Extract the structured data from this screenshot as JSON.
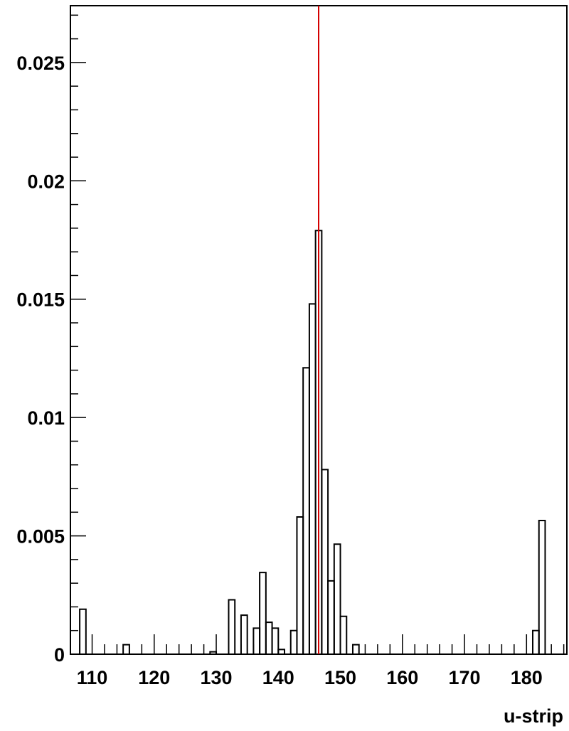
{
  "chart_data": {
    "type": "histogram",
    "title": "",
    "xlabel": "u-strip",
    "ylabel": "",
    "xlim": [
      106.5,
      186.5
    ],
    "ylim": [
      0,
      0.0274
    ],
    "bin_width": 1,
    "x_ticks": [
      110,
      120,
      130,
      140,
      150,
      160,
      170,
      180
    ],
    "x_tick_labels": [
      "110",
      "120",
      "130",
      "140",
      "150",
      "160",
      "170",
      "180"
    ],
    "y_ticks": [
      0,
      0.005,
      0.01,
      0.015,
      0.02,
      0.025
    ],
    "y_tick_labels": [
      "0",
      "0.005",
      "0.01",
      "0.015",
      "0.02",
      "0.025"
    ],
    "bins": [
      {
        "x": 108,
        "value": 0.0019
      },
      {
        "x": 115,
        "value": 0.0004
      },
      {
        "x": 129,
        "value": 0.0001
      },
      {
        "x": 132,
        "value": 0.0023
      },
      {
        "x": 134,
        "value": 0.00165
      },
      {
        "x": 136,
        "value": 0.0011
      },
      {
        "x": 137,
        "value": 0.00345
      },
      {
        "x": 138,
        "value": 0.00135
      },
      {
        "x": 139,
        "value": 0.0011
      },
      {
        "x": 140,
        "value": 0.0002
      },
      {
        "x": 142,
        "value": 0.001
      },
      {
        "x": 143,
        "value": 0.0058
      },
      {
        "x": 144,
        "value": 0.0121
      },
      {
        "x": 145,
        "value": 0.0148
      },
      {
        "x": 146,
        "value": 0.0179
      },
      {
        "x": 147,
        "value": 0.0078
      },
      {
        "x": 148,
        "value": 0.0031
      },
      {
        "x": 149,
        "value": 0.00465
      },
      {
        "x": 150,
        "value": 0.0016
      },
      {
        "x": 152,
        "value": 0.0004
      },
      {
        "x": 181,
        "value": 0.001
      },
      {
        "x": 182,
        "value": 0.00565
      }
    ],
    "marker_line": {
      "x": 146.5,
      "color": "#d40000"
    },
    "colors": {
      "histogram": "#000000",
      "marker": "#d40000",
      "axes": "#000000"
    }
  }
}
